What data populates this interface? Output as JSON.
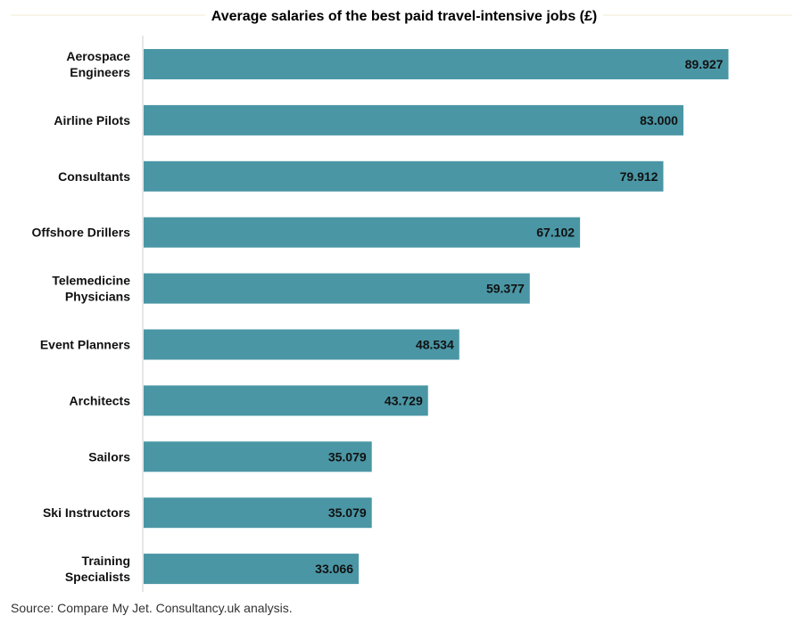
{
  "chart_data": {
    "type": "bar",
    "orientation": "horizontal",
    "title": "Average salaries of the best paid travel-intensive jobs (£)",
    "categories": [
      "Aerospace Engineers",
      "Airline Pilots",
      "Consultants",
      "Offshore Drillers",
      "Telemedicine Physicians",
      "Event Planners",
      "Architects",
      "Sailors",
      "Ski Instructors",
      "Training Specialists"
    ],
    "category_lines": [
      [
        "Aerospace",
        "Engineers"
      ],
      [
        "Airline Pilots"
      ],
      [
        "Consultants"
      ],
      [
        "Offshore Drillers"
      ],
      [
        "Telemedicine",
        "Physicians"
      ],
      [
        "Event Planners"
      ],
      [
        "Architects"
      ],
      [
        "Sailors"
      ],
      [
        "Ski Instructors"
      ],
      [
        "Training",
        "Specialists"
      ]
    ],
    "values": [
      89927,
      83000,
      79912,
      67102,
      59377,
      48534,
      43729,
      35079,
      35079,
      33066
    ],
    "value_labels": [
      "89.927",
      "83.000",
      "79.912",
      "67.102",
      "59.377",
      "48.534",
      "43.729",
      "35.079",
      "35.079",
      "33.066"
    ],
    "xlim": [
      0,
      90000
    ],
    "grid": false,
    "bar_color": "#4a96a5"
  },
  "source": "Source: Compare My Jet. Consultancy.uk analysis."
}
